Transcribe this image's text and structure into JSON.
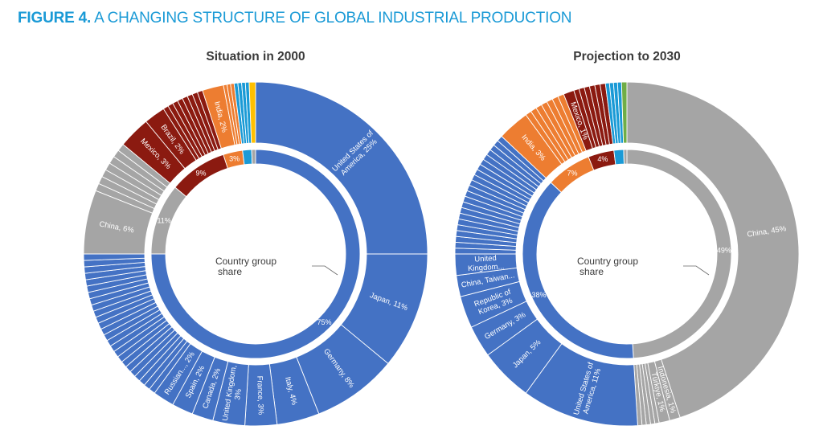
{
  "figure": {
    "label": "FIGURE 4.",
    "title": "A CHANGING STRUCTURE OF GLOBAL INDUSTRIAL PRODUCTION"
  },
  "colors": {
    "blue": "#4472c4",
    "gray": "#a5a5a5",
    "darkred": "#8b1a10",
    "orange": "#ed7d31",
    "lightblue": "#1a9ad6",
    "yellow": "#ffc000",
    "green": "#70ad47",
    "title_blue": "#1a9ad6"
  },
  "chart_data": [
    {
      "type": "pie",
      "title": "Situation in 2000",
      "center_label": [
        "Country group",
        "share"
      ],
      "inner_ring": [
        {
          "value": 75,
          "label": "75%",
          "color": "blue"
        },
        {
          "value": 11,
          "label": "11%",
          "color": "gray"
        },
        {
          "value": 9,
          "label": "9%",
          "color": "darkred"
        },
        {
          "value": 3,
          "label": "3%",
          "color": "orange"
        },
        {
          "value": 1.4,
          "label": "",
          "color": "lightblue"
        },
        {
          "value": 0.6,
          "label": "",
          "color": "gray"
        }
      ],
      "outer_ring": [
        {
          "value": 25,
          "label": "United States of America, 25%",
          "color": "blue"
        },
        {
          "value": 11,
          "label": "Japan, 11%",
          "color": "blue"
        },
        {
          "value": 8,
          "label": "Germany, 8%",
          "color": "blue"
        },
        {
          "value": 4,
          "label": "Italy, 4%",
          "color": "blue"
        },
        {
          "value": 3,
          "label": "France, 3%",
          "color": "blue"
        },
        {
          "value": 3,
          "label": "United Kingdom, 3%",
          "color": "blue"
        },
        {
          "value": 2,
          "label": "Canada, 2%",
          "color": "blue"
        },
        {
          "value": 2,
          "label": "Spain, 2%",
          "color": "blue"
        },
        {
          "value": 2,
          "label": "Russian..., 2%",
          "color": "blue"
        },
        {
          "value": 15,
          "label": "",
          "color": "blue",
          "split": 25
        },
        {
          "value": 6,
          "label": "China, 6%",
          "color": "gray"
        },
        {
          "value": 5,
          "label": "",
          "color": "gray",
          "split": 7
        },
        {
          "value": 3,
          "label": "Mexico, 3%",
          "color": "darkred"
        },
        {
          "value": 2,
          "label": "Brazil, 2%",
          "color": "darkred"
        },
        {
          "value": 4,
          "label": "",
          "color": "darkred",
          "split": 8
        },
        {
          "value": 2,
          "label": "India, 2%",
          "color": "orange"
        },
        {
          "value": 1,
          "label": "",
          "color": "orange",
          "split": 3
        },
        {
          "value": 1.4,
          "label": "",
          "color": "lightblue",
          "split": 4
        },
        {
          "value": 0.6,
          "label": "",
          "color": "yellow",
          "split": 1
        }
      ]
    },
    {
      "type": "pie",
      "title": "Projection to 2030",
      "center_label": [
        "Country group",
        "share"
      ],
      "inner_ring": [
        {
          "value": 49,
          "label": "49%",
          "color": "gray"
        },
        {
          "value": 38,
          "label": "38%",
          "color": "blue"
        },
        {
          "value": 7,
          "label": "7%",
          "color": "orange"
        },
        {
          "value": 4,
          "label": "4%",
          "color": "darkred"
        },
        {
          "value": 1.5,
          "label": "",
          "color": "lightblue"
        },
        {
          "value": 0.5,
          "label": "",
          "color": "gray"
        }
      ],
      "outer_ring": [
        {
          "value": 45,
          "label": "China, 45%",
          "color": "gray"
        },
        {
          "value": 1,
          "label": "Indonesia, 1%",
          "color": "gray"
        },
        {
          "value": 1,
          "label": "Türkiye, 1%",
          "color": "gray"
        },
        {
          "value": 2,
          "label": "",
          "color": "gray",
          "split": 5
        },
        {
          "value": 11,
          "label": "United States of America, 11%",
          "color": "blue"
        },
        {
          "value": 5,
          "label": "Japan, 5%",
          "color": "blue"
        },
        {
          "value": 3,
          "label": "Germany, 3%",
          "color": "blue"
        },
        {
          "value": 3,
          "label": "Republic of Korea, 3%",
          "color": "blue"
        },
        {
          "value": 2,
          "label": "China, Taiwan...",
          "color": "blue"
        },
        {
          "value": 2,
          "label": "United Kingdom...",
          "color": "blue"
        },
        {
          "value": 12,
          "label": "",
          "color": "blue",
          "split": 22
        },
        {
          "value": 3,
          "label": "India, 3%",
          "color": "orange"
        },
        {
          "value": 4,
          "label": "",
          "color": "orange",
          "split": 7
        },
        {
          "value": 1,
          "label": "Mexico, 1%",
          "color": "darkred"
        },
        {
          "value": 3,
          "label": "",
          "color": "darkred",
          "split": 6
        },
        {
          "value": 1.5,
          "label": "",
          "color": "lightblue",
          "split": 4
        },
        {
          "value": 0.5,
          "label": "",
          "color": "green",
          "split": 1
        }
      ]
    }
  ]
}
